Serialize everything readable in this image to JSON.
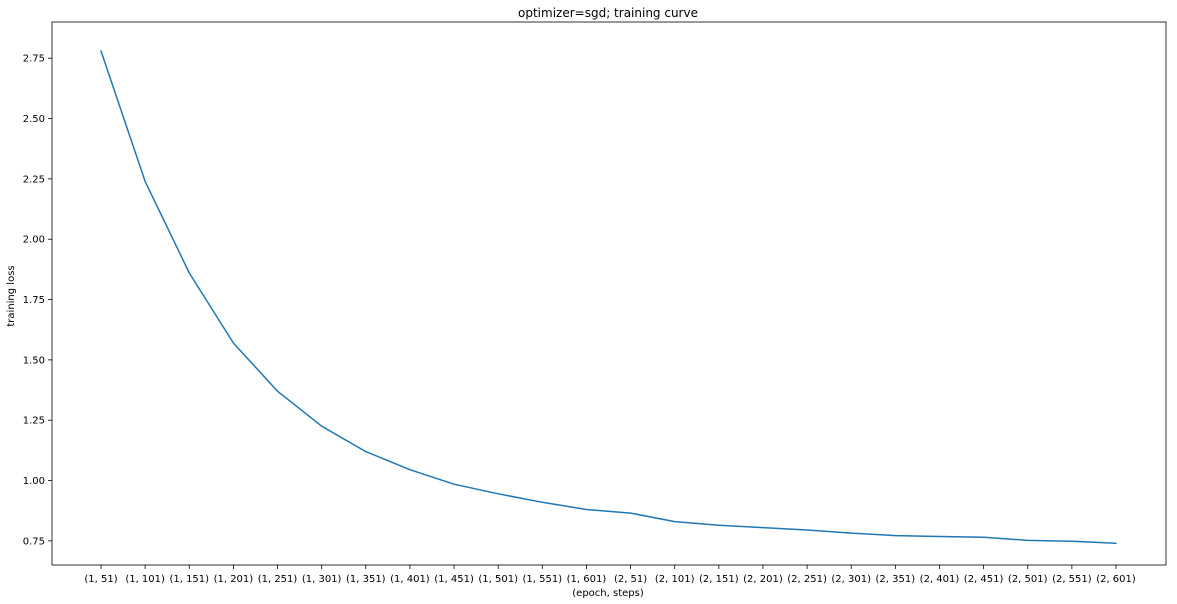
{
  "chart_data": {
    "type": "line",
    "title": "optimizer=sgd; training curve",
    "xlabel": "(epoch, steps)",
    "ylabel": "training loss",
    "categories": [
      "(1, 51)",
      "(1, 101)",
      "(1, 151)",
      "(1, 201)",
      "(1, 251)",
      "(1, 301)",
      "(1, 351)",
      "(1, 401)",
      "(1, 451)",
      "(1, 501)",
      "(1, 551)",
      "(1, 601)",
      "(2, 51)",
      "(2, 101)",
      "(2, 151)",
      "(2, 201)",
      "(2, 251)",
      "(2, 301)",
      "(2, 351)",
      "(2, 401)",
      "(2, 451)",
      "(2, 501)",
      "(2, 551)",
      "(2, 601)"
    ],
    "series": [
      {
        "color": "#1f77b4",
        "values": [
          2.78,
          2.24,
          1.86,
          1.57,
          1.37,
          1.225,
          1.12,
          1.045,
          0.985,
          0.945,
          0.91,
          0.88,
          0.865,
          0.83,
          0.815,
          0.805,
          0.795,
          0.782,
          0.772,
          0.768,
          0.765,
          0.752,
          0.748,
          0.74
        ]
      }
    ],
    "ylim": [
      0.65,
      2.9
    ],
    "yticks": [
      "0.75",
      "1.00",
      "1.25",
      "1.50",
      "1.75",
      "2.00",
      "2.25",
      "2.50",
      "2.75"
    ],
    "grid": false,
    "legend": "none"
  }
}
